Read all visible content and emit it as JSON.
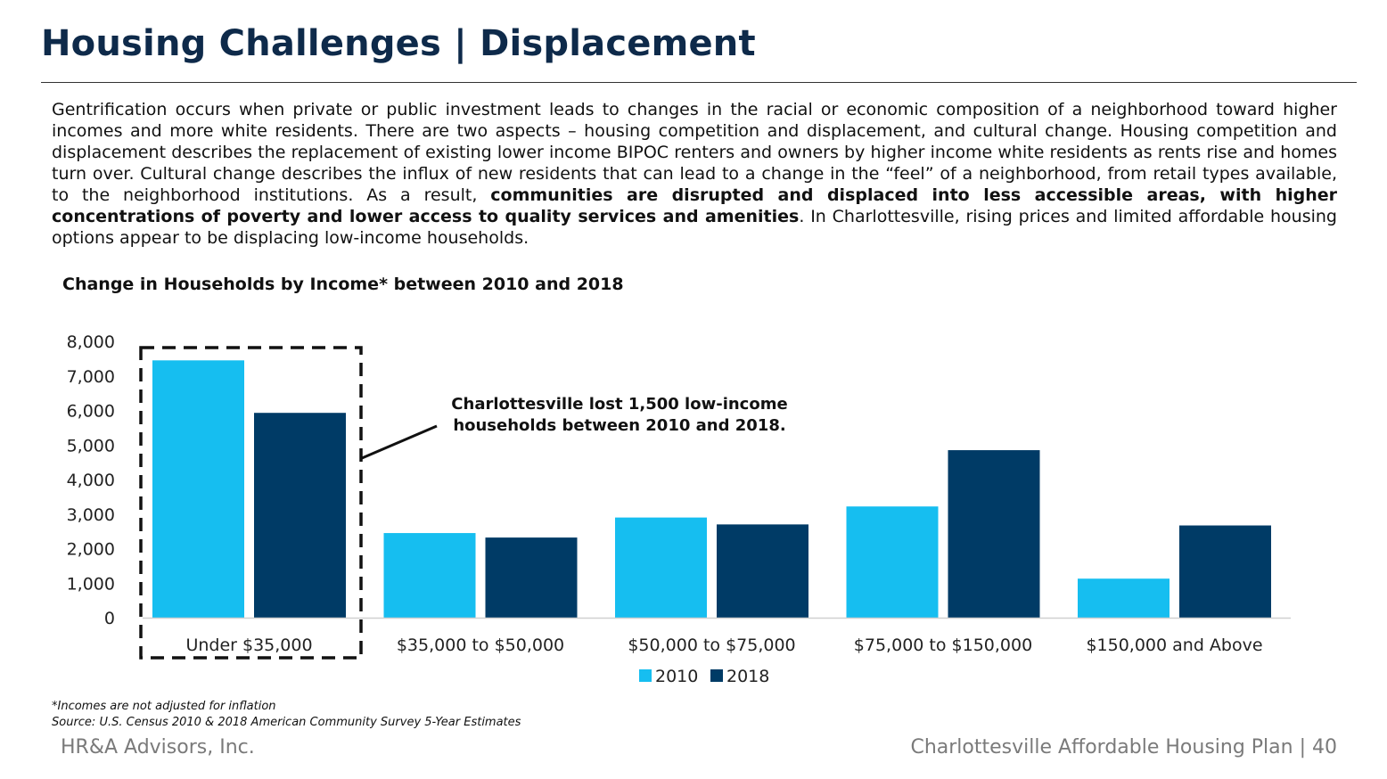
{
  "page": {
    "title": "Housing Challenges | Displacement",
    "paragraph": {
      "part1": "Gentrification occurs when private or public investment leads to changes in the racial or economic composition of a neighborhood toward higher incomes and more white residents. There are two aspects – housing competition and displacement, and cultural change. Housing competition and displacement describes the replacement of existing lower income BIPOC renters and owners by higher income white residents as rents rise and homes turn over. Cultural change describes the influx of new residents that can lead to a change in the “feel” of a neighborhood, from retail types available, to the neighborhood institutions. As a result, ",
      "bold": "communities are disrupted and displaced into less accessible areas, with higher concentrations of poverty and lower access to quality services and amenities",
      "part2": ". In Charlottesville, rising prices and limited affordable housing options appear to be displacing low-income households."
    },
    "footnote_income": "*Incomes are not adjusted for inflation",
    "footnote_source": "Source: U.S. Census 2010 & 2018 American Community Survey 5-Year Estimates",
    "footer_left": "HR&A Advisors, Inc.",
    "footer_right": "Charlottesville Affordable Housing Plan | 40"
  },
  "chart_data": {
    "type": "bar",
    "title": "Change in Households by Income* between 2010 and 2018",
    "categories": [
      "Under $35,000",
      "$35,000 to $50,000",
      "$50,000 to $75,000",
      "$75,000 to $150,000",
      "$150,000 and Above"
    ],
    "series": [
      {
        "name": "2010",
        "color": "#16bef0",
        "values": [
          7450,
          2450,
          2900,
          3220,
          1130
        ]
      },
      {
        "name": "2018",
        "color": "#003b66",
        "values": [
          5930,
          2320,
          2700,
          4850,
          2670
        ]
      }
    ],
    "ylim": [
      0,
      8000
    ],
    "yticks": [
      0,
      1000,
      2000,
      3000,
      4000,
      5000,
      6000,
      7000,
      8000
    ],
    "ytick_labels": [
      "0",
      "1,000",
      "2,000",
      "3,000",
      "4,000",
      "5,000",
      "6,000",
      "7,000",
      "8,000"
    ],
    "legend_position": "bottom-center",
    "grid": false,
    "annotation": {
      "text_line1": "Charlottesville lost 1,500 low-income",
      "text_line2": "households between 2010 and 2018.",
      "highlight_category": "Under $35,000"
    }
  }
}
